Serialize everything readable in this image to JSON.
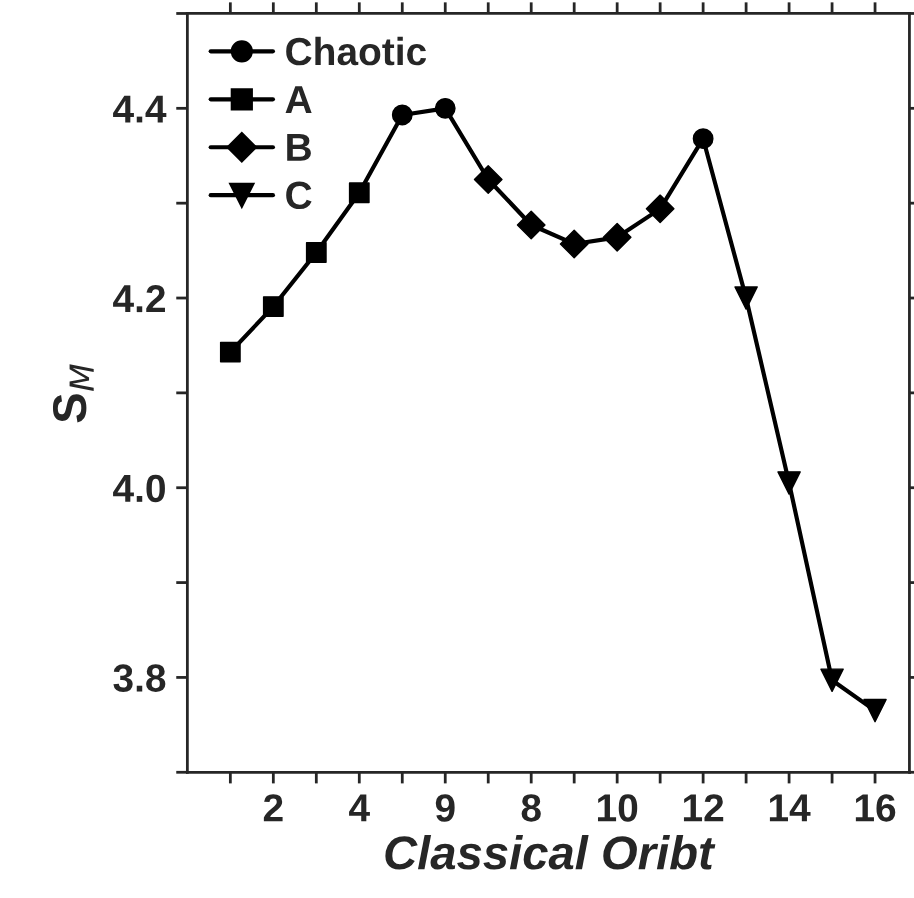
{
  "chart_data": {
    "type": "scatter",
    "xlabel": "Classical Oribt",
    "ylabel": "S$_{M}$",
    "categories": [
      null,
      "2",
      null,
      "4",
      null,
      "9",
      null,
      "8",
      null,
      "10",
      null,
      "12",
      null,
      "14",
      null,
      "16"
    ],
    "ylim": [
      3.7,
      4.5
    ],
    "yticks": [
      {
        "value": 3.7,
        "label": null
      },
      3.8,
      {
        "value": 3.9,
        "label": null
      },
      {
        "value": 4.0,
        "label": "4.0"
      },
      {
        "value": 4.1,
        "label": null
      },
      4.2,
      {
        "value": 4.3,
        "label": null
      },
      4.4,
      {
        "value": 4.5,
        "label": null
      }
    ],
    "legend": "top left",
    "grid": false,
    "series": [
      {
        "type": "line",
        "color": "#000000",
        "marker": "none",
        "line_style": "solid",
        "values": [
          4.143,
          4.191,
          4.248,
          4.311,
          4.393,
          4.4,
          4.325,
          4.277,
          4.257,
          4.264,
          4.294,
          4.368,
          4.2,
          4.005,
          3.797,
          3.765
        ]
      },
      {
        "name": "Chaotic",
        "color": "#000000",
        "marker": "circle",
        "values": [
          null,
          null,
          null,
          null,
          4.393,
          4.4,
          null,
          null,
          null,
          null,
          null,
          4.368,
          null,
          null,
          null,
          null
        ]
      },
      {
        "name": "A",
        "color": "#000000",
        "marker": "square",
        "values": [
          4.143,
          4.191,
          4.248,
          4.311,
          null,
          null,
          null,
          null,
          null,
          null,
          null,
          null,
          null,
          null,
          null,
          null
        ]
      },
      {
        "name": "B",
        "color": "#000000",
        "marker": "diamond",
        "values": [
          null,
          null,
          null,
          null,
          null,
          null,
          4.325,
          4.277,
          4.257,
          4.264,
          4.294,
          null,
          null,
          null,
          null,
          null
        ]
      },
      {
        "name": "C",
        "color": "#000000",
        "marker": "triangle",
        "values": [
          null,
          null,
          null,
          null,
          null,
          null,
          null,
          null,
          null,
          null,
          null,
          null,
          4.2,
          4.005,
          3.797,
          3.765
        ]
      }
    ]
  }
}
